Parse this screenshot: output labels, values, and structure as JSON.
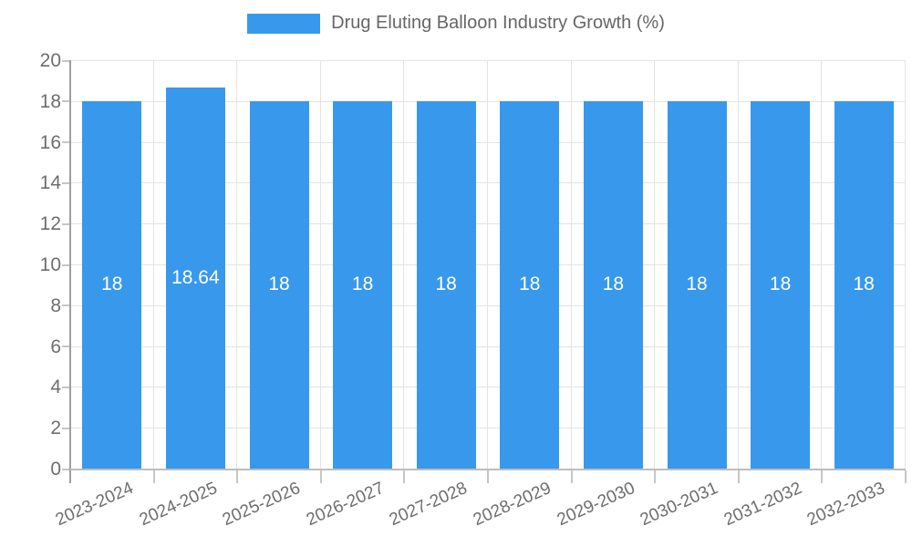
{
  "chart_data": {
    "type": "bar",
    "title": "Drug Eluting Balloon Industry Growth (%)",
    "legend_label": "Drug Eluting Balloon Industry Growth (%)",
    "legend_position": "top",
    "categories": [
      "2023-2024",
      "2024-2025",
      "2025-2026",
      "2026-2027",
      "2027-2028",
      "2028-2029",
      "2029-2030",
      "2030-2031",
      "2031-2032",
      "2032-2033"
    ],
    "series": [
      {
        "name": "Drug Eluting Balloon Industry Growth (%)",
        "values": [
          18,
          18.64,
          18,
          18,
          18,
          18,
          18,
          18,
          18,
          18
        ],
        "value_labels": [
          "18",
          "18.64",
          "18",
          "18",
          "18",
          "18",
          "18",
          "18",
          "18",
          "18"
        ]
      }
    ],
    "xlabel": "",
    "ylabel": "",
    "ylim": [
      0,
      20
    ],
    "y_ticks": [
      0,
      2,
      4,
      6,
      8,
      10,
      12,
      14,
      16,
      18,
      20
    ],
    "grid": true,
    "colors": {
      "bar": "#3899EC",
      "value_label_text": "#ffffff",
      "axis_text": "#6e6e6e",
      "legend_text": "#666666",
      "gridline": "#e4e4e4"
    }
  }
}
